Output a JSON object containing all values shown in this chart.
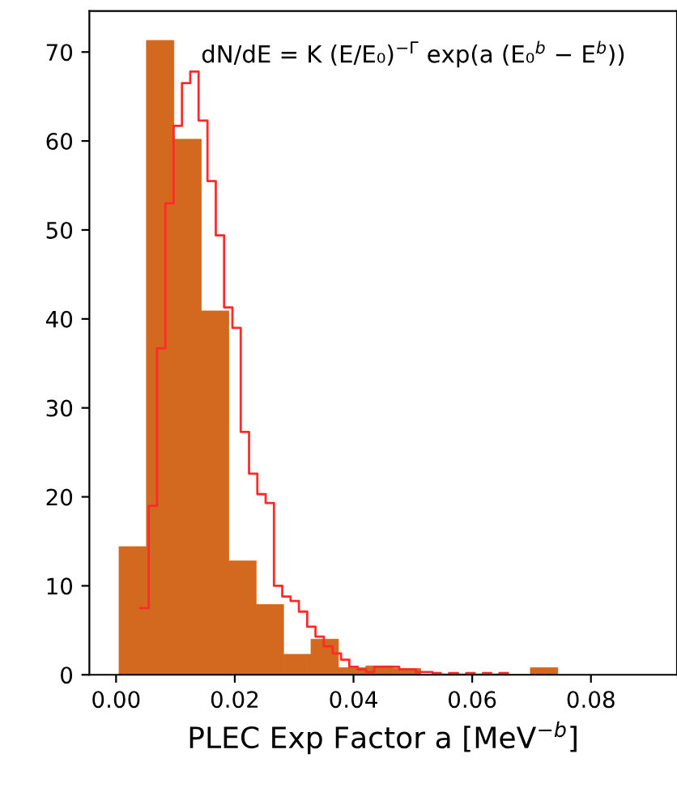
{
  "chart_data": {
    "type": "histogram",
    "xlabel": "PLEC Exp Factor a [MeV$^{−b}$]",
    "annotations": [
      "dN/dE = K (E/E₀)$^{−Γ}$ exp(a (E₀$^{b}$ − E$^{b}$))"
    ],
    "xlim": [
      -0.0045,
      0.0945
    ],
    "ylim": [
      0,
      74.6
    ],
    "xticks": [
      {
        "value": 0,
        "label": "0.00"
      },
      {
        "value": 0.02,
        "label": "0.02"
      },
      {
        "value": 0.04,
        "label": "0.04"
      },
      {
        "value": 0.06,
        "label": "0.06"
      },
      {
        "value": 0.08,
        "label": "0.08"
      }
    ],
    "yticks": [
      0,
      10,
      20,
      30,
      40,
      50,
      60,
      70
    ],
    "color": "#d2691e",
    "bins": [
      0.0005,
      0.00512,
      0.00974,
      0.01436,
      0.01898,
      0.0236,
      0.02822,
      0.03284,
      0.03746,
      0.04208,
      0.0467,
      0.05132,
      0.05594,
      0.06056,
      0.06518,
      0.0698,
      0.07442
    ],
    "values": [
      14.4,
      71.3,
      60.2,
      40.9,
      12.8,
      7.9,
      2.3,
      4.0,
      0.8,
      1.0,
      0.7,
      null,
      0,
      0,
      0,
      0.8
    ],
    "series": [
      {
        "type": "step",
        "color": "#ff2a2a",
        "x": [
          0.0041,
          0.0055,
          0.0069,
          0.0083,
          0.0097,
          0.0111,
          0.0125,
          0.0139,
          0.0154,
          0.0168,
          0.0182,
          0.0196,
          0.021,
          0.0224,
          0.0238,
          0.0252,
          0.0266,
          0.028,
          0.0294,
          0.0308,
          0.0322,
          0.0336,
          0.035,
          0.0365,
          0.0379,
          0.0393,
          0.0407,
          0.0421,
          0.0435,
          0.0449,
          0.0463,
          0.0477,
          0.0491,
          0.0505,
          0.0519,
          0.0533,
          0.0547,
          0.0561,
          0.0576,
          0.059,
          0.0604,
          0.0618,
          0.0632,
          0.0646,
          0.066
        ],
        "values": [
          7.5,
          19,
          36.7,
          53,
          61.7,
          66.5,
          67.8,
          62.3,
          55.5,
          49.4,
          41.3,
          39.0,
          27.3,
          22.6,
          20.3,
          19.3,
          10.0,
          8.8,
          8.3,
          7.1,
          5.4,
          4.3,
          3.2,
          2.4,
          1.7,
          0.9,
          0.6,
          0.3,
          0.9,
          0.9,
          0.9,
          0.6,
          0.6,
          0.3,
          0.3,
          0.2,
          0,
          0.2,
          0,
          0.2,
          0,
          0.2,
          0,
          0.2,
          0.2
        ]
      }
    ]
  }
}
